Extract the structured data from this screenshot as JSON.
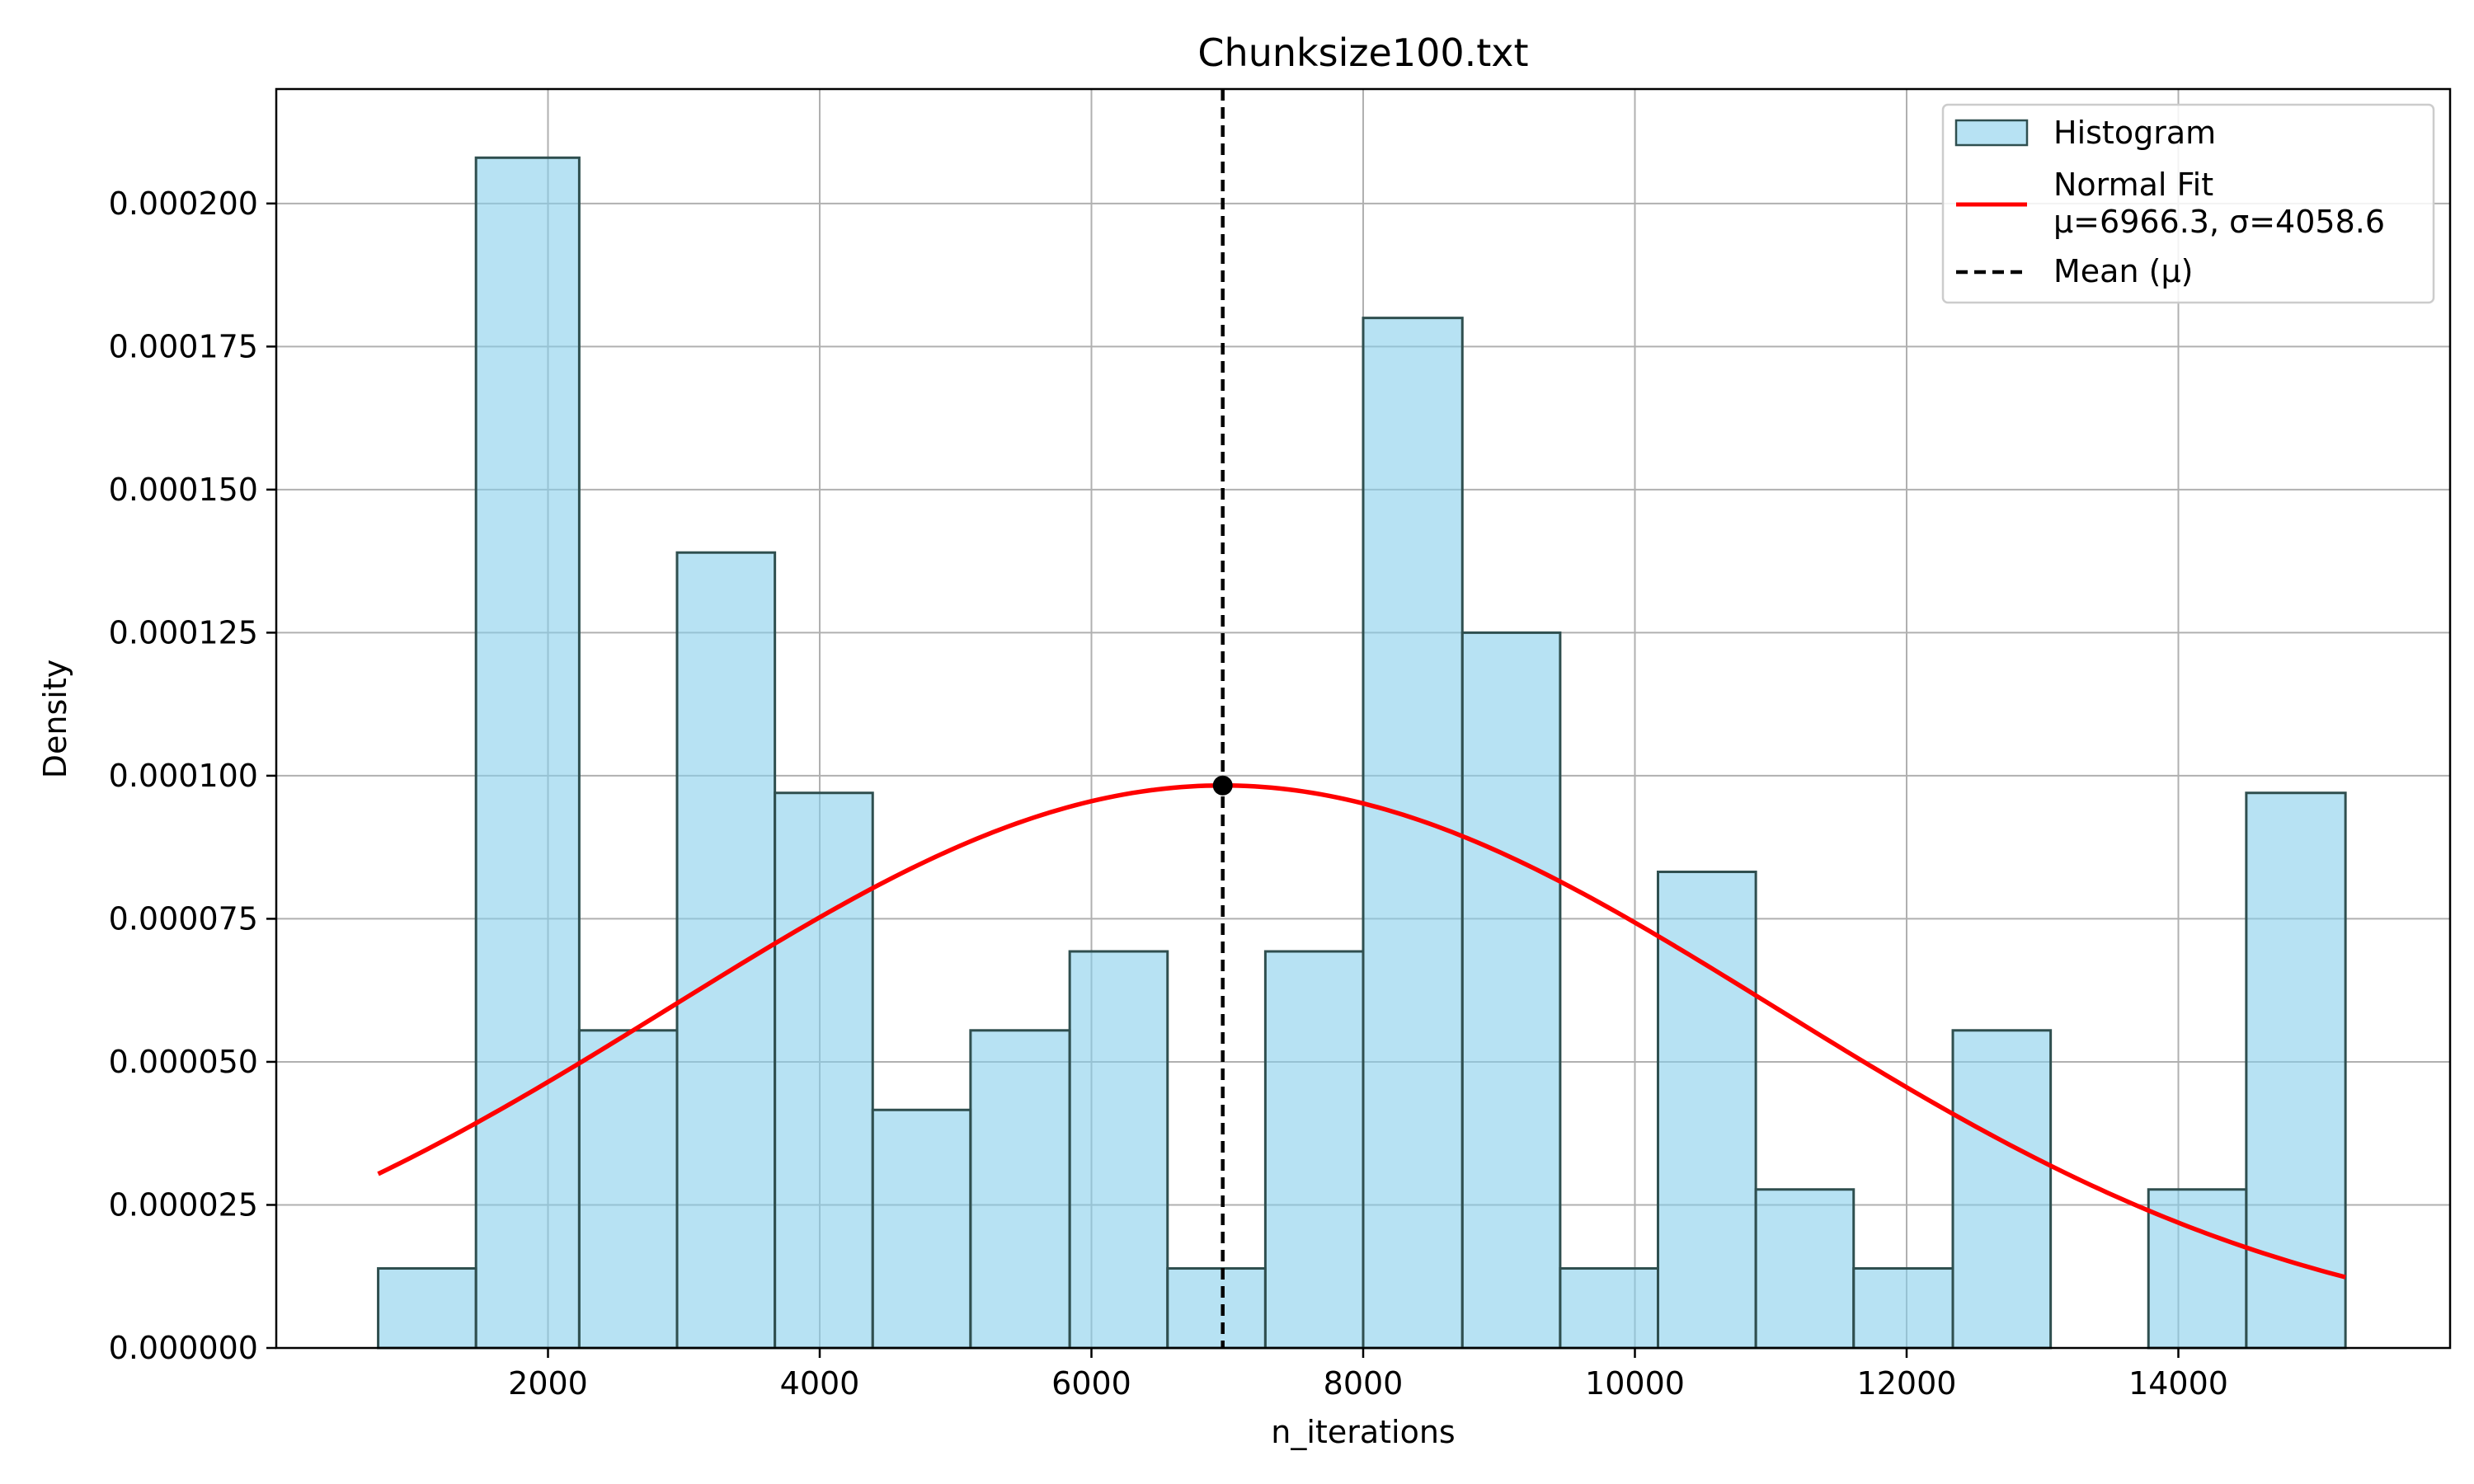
{
  "chart_data": {
    "type": "histogram",
    "title": "Chunksize100.txt",
    "xlabel": "n_iterations",
    "ylabel": "Density",
    "xlim": [
      0,
      16000
    ],
    "ylim": [
      0,
      0.00022
    ],
    "xticks": [
      2000,
      4000,
      6000,
      8000,
      10000,
      12000,
      14000
    ],
    "xtick_labels": [
      "2000",
      "4000",
      "6000",
      "8000",
      "10000",
      "12000",
      "14000"
    ],
    "yticks": [
      0,
      2.5e-05,
      5e-05,
      7.5e-05,
      0.0001,
      0.000125,
      0.00015,
      0.000175,
      0.0002
    ],
    "ytick_labels": [
      "0.000000",
      "0.000025",
      "0.000050",
      "0.000075",
      "0.000100",
      "0.000125",
      "0.000150",
      "0.000175",
      "0.000200"
    ],
    "grid": true,
    "legend_position": "top-right",
    "bins": [
      {
        "x0": 750,
        "x1": 1470,
        "density": 1.39e-05
      },
      {
        "x0": 1470,
        "x1": 2230,
        "density": 0.000208
      },
      {
        "x0": 2230,
        "x1": 2950,
        "density": 5.55e-05
      },
      {
        "x0": 2950,
        "x1": 3670,
        "density": 0.000139
      },
      {
        "x0": 3670,
        "x1": 4390,
        "density": 9.7e-05
      },
      {
        "x0": 4390,
        "x1": 5110,
        "density": 4.16e-05
      },
      {
        "x0": 5110,
        "x1": 5840,
        "density": 5.55e-05
      },
      {
        "x0": 5840,
        "x1": 6560,
        "density": 6.93e-05
      },
      {
        "x0": 6560,
        "x1": 7280,
        "density": 1.39e-05
      },
      {
        "x0": 7280,
        "x1": 8000,
        "density": 6.93e-05
      },
      {
        "x0": 8000,
        "x1": 8730,
        "density": 0.00018
      },
      {
        "x0": 8730,
        "x1": 9450,
        "density": 0.000125
      },
      {
        "x0": 9450,
        "x1": 10170,
        "density": 1.39e-05
      },
      {
        "x0": 10170,
        "x1": 10890,
        "density": 8.32e-05
      },
      {
        "x0": 10890,
        "x1": 11610,
        "density": 2.77e-05
      },
      {
        "x0": 11610,
        "x1": 12340,
        "density": 1.39e-05
      },
      {
        "x0": 12340,
        "x1": 13060,
        "density": 5.55e-05
      },
      {
        "x0": 13060,
        "x1": 13780,
        "density": 0
      },
      {
        "x0": 13780,
        "x1": 14500,
        "density": 2.77e-05
      },
      {
        "x0": 14500,
        "x1": 15230,
        "density": 9.7e-05
      }
    ],
    "normal_fit": {
      "mu": 6966.3,
      "sigma": 4058.6,
      "x_range": [
        750,
        15230
      ]
    },
    "mean_line_x": 6966.3,
    "colors": {
      "bar_fill": "#87ceeb",
      "bar_edge": "#2f4f4f",
      "fit_line": "#ff0000",
      "mean_line": "#000000",
      "grid": "#b0b0b0"
    },
    "legend": [
      {
        "label": "Histogram",
        "kind": "patch"
      },
      {
        "label": "Normal Fit",
        "label2": "μ=6966.3, σ=4058.6",
        "kind": "line"
      },
      {
        "label": "Mean (μ)",
        "kind": "dashed"
      }
    ]
  }
}
